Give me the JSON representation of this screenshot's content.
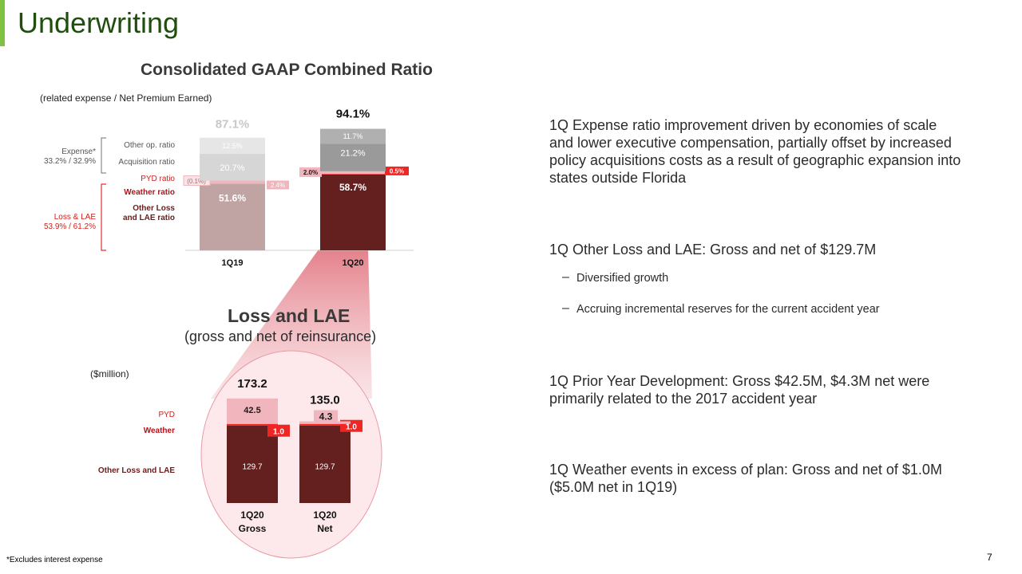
{
  "slide": {
    "title": "Underwriting",
    "footnote": "*Excludes interest expense",
    "page_number": "7"
  },
  "colors": {
    "accent": "#7fc241",
    "title_green": "#1f4e0f",
    "other_loss_dark": "#63201f",
    "other_loss_light": "#c0a3a3",
    "acq_dark": "#9a9a9a",
    "acq_light": "#d6d6d6",
    "other_op_dark": "#b0b0b0",
    "other_op_light": "#e6e6e6",
    "weather_red": "#ee2624",
    "pyd_pink": "#f1b6bd"
  },
  "chart_data": [
    {
      "type": "bar",
      "stacked": true,
      "title": "Consolidated GAAP Combined Ratio",
      "subtitle": "(related expense / Net Premium Earned)",
      "categories": [
        "1Q19",
        "1Q20"
      ],
      "totals": [
        "87.1%",
        "94.1%"
      ],
      "ylim": [
        -0.1,
        94.1
      ],
      "series": [
        {
          "name": "Other Loss and LAE ratio",
          "values": [
            51.6,
            58.7
          ],
          "labels": [
            "51.6%",
            "58.7%"
          ]
        },
        {
          "name": "Weather ratio",
          "values": [
            2.4,
            0.5
          ],
          "labels": [
            "2.4%",
            "0.5%"
          ]
        },
        {
          "name": "PYD ratio",
          "values": [
            -0.1,
            2.0
          ],
          "labels": [
            "(0.1%)",
            "2.0%"
          ]
        },
        {
          "name": "Acquisition ratio",
          "values": [
            20.7,
            21.2
          ],
          "labels": [
            "20.7%",
            "21.2%"
          ]
        },
        {
          "name": "Other op. ratio",
          "values": [
            12.5,
            11.7
          ],
          "labels": [
            "12.5%",
            "11.7%"
          ]
        }
      ],
      "groups": [
        {
          "name": "Expense*",
          "detail": "33.2% / 32.9%"
        },
        {
          "name": "Loss & LAE",
          "detail": "53.9% / 61.2%"
        }
      ],
      "legend_labels": {
        "other_op": "Other op. ratio",
        "acquisition": "Acquisition ratio",
        "pyd": "PYD ratio",
        "weather": "Weather ratio",
        "other_loss_1": "Other Loss",
        "other_loss_2": "and LAE ratio"
      }
    },
    {
      "type": "bar",
      "stacked": true,
      "title": "Loss and LAE",
      "subtitle": "(gross and net of reinsurance)",
      "unit": "($million)",
      "categories": [
        "1Q20 Gross",
        "1Q20 Net"
      ],
      "category_lines": [
        [
          "1Q20",
          "Gross"
        ],
        [
          "1Q20",
          "Net"
        ]
      ],
      "totals": [
        173.2,
        135.0
      ],
      "totals_labels": [
        "173.2",
        "135.0"
      ],
      "ylim": [
        0,
        173.2
      ],
      "series": [
        {
          "name": "Other Loss and LAE",
          "values": [
            129.7,
            129.7
          ],
          "labels": [
            "129.7",
            "129.7"
          ]
        },
        {
          "name": "Weather",
          "values": [
            1.0,
            1.0
          ],
          "labels": [
            "1.0",
            "1.0"
          ]
        },
        {
          "name": "PYD",
          "values": [
            42.5,
            4.3
          ],
          "labels": [
            "42.5",
            "4.3"
          ]
        }
      ]
    }
  ],
  "bullets": [
    {
      "text": "1Q Expense ratio improvement driven by economies of scale and lower executive compensation, partially offset by increased policy acquisitions costs as a result of geographic expansion into states outside Florida"
    },
    {
      "text": "1Q Other Loss and LAE: Gross and net of $129.7M"
    },
    {
      "text": "Diversified growth",
      "sub": true
    },
    {
      "text": "Accruing incremental reserves for the current accident year",
      "sub": true
    },
    {
      "text": "1Q Prior Year Development: Gross $42.5M, $4.3M net were primarily related to the 2017 accident year"
    },
    {
      "text": "1Q Weather events in excess of plan: Gross and net of $1.0M ($5.0M net in 1Q19)"
    }
  ]
}
